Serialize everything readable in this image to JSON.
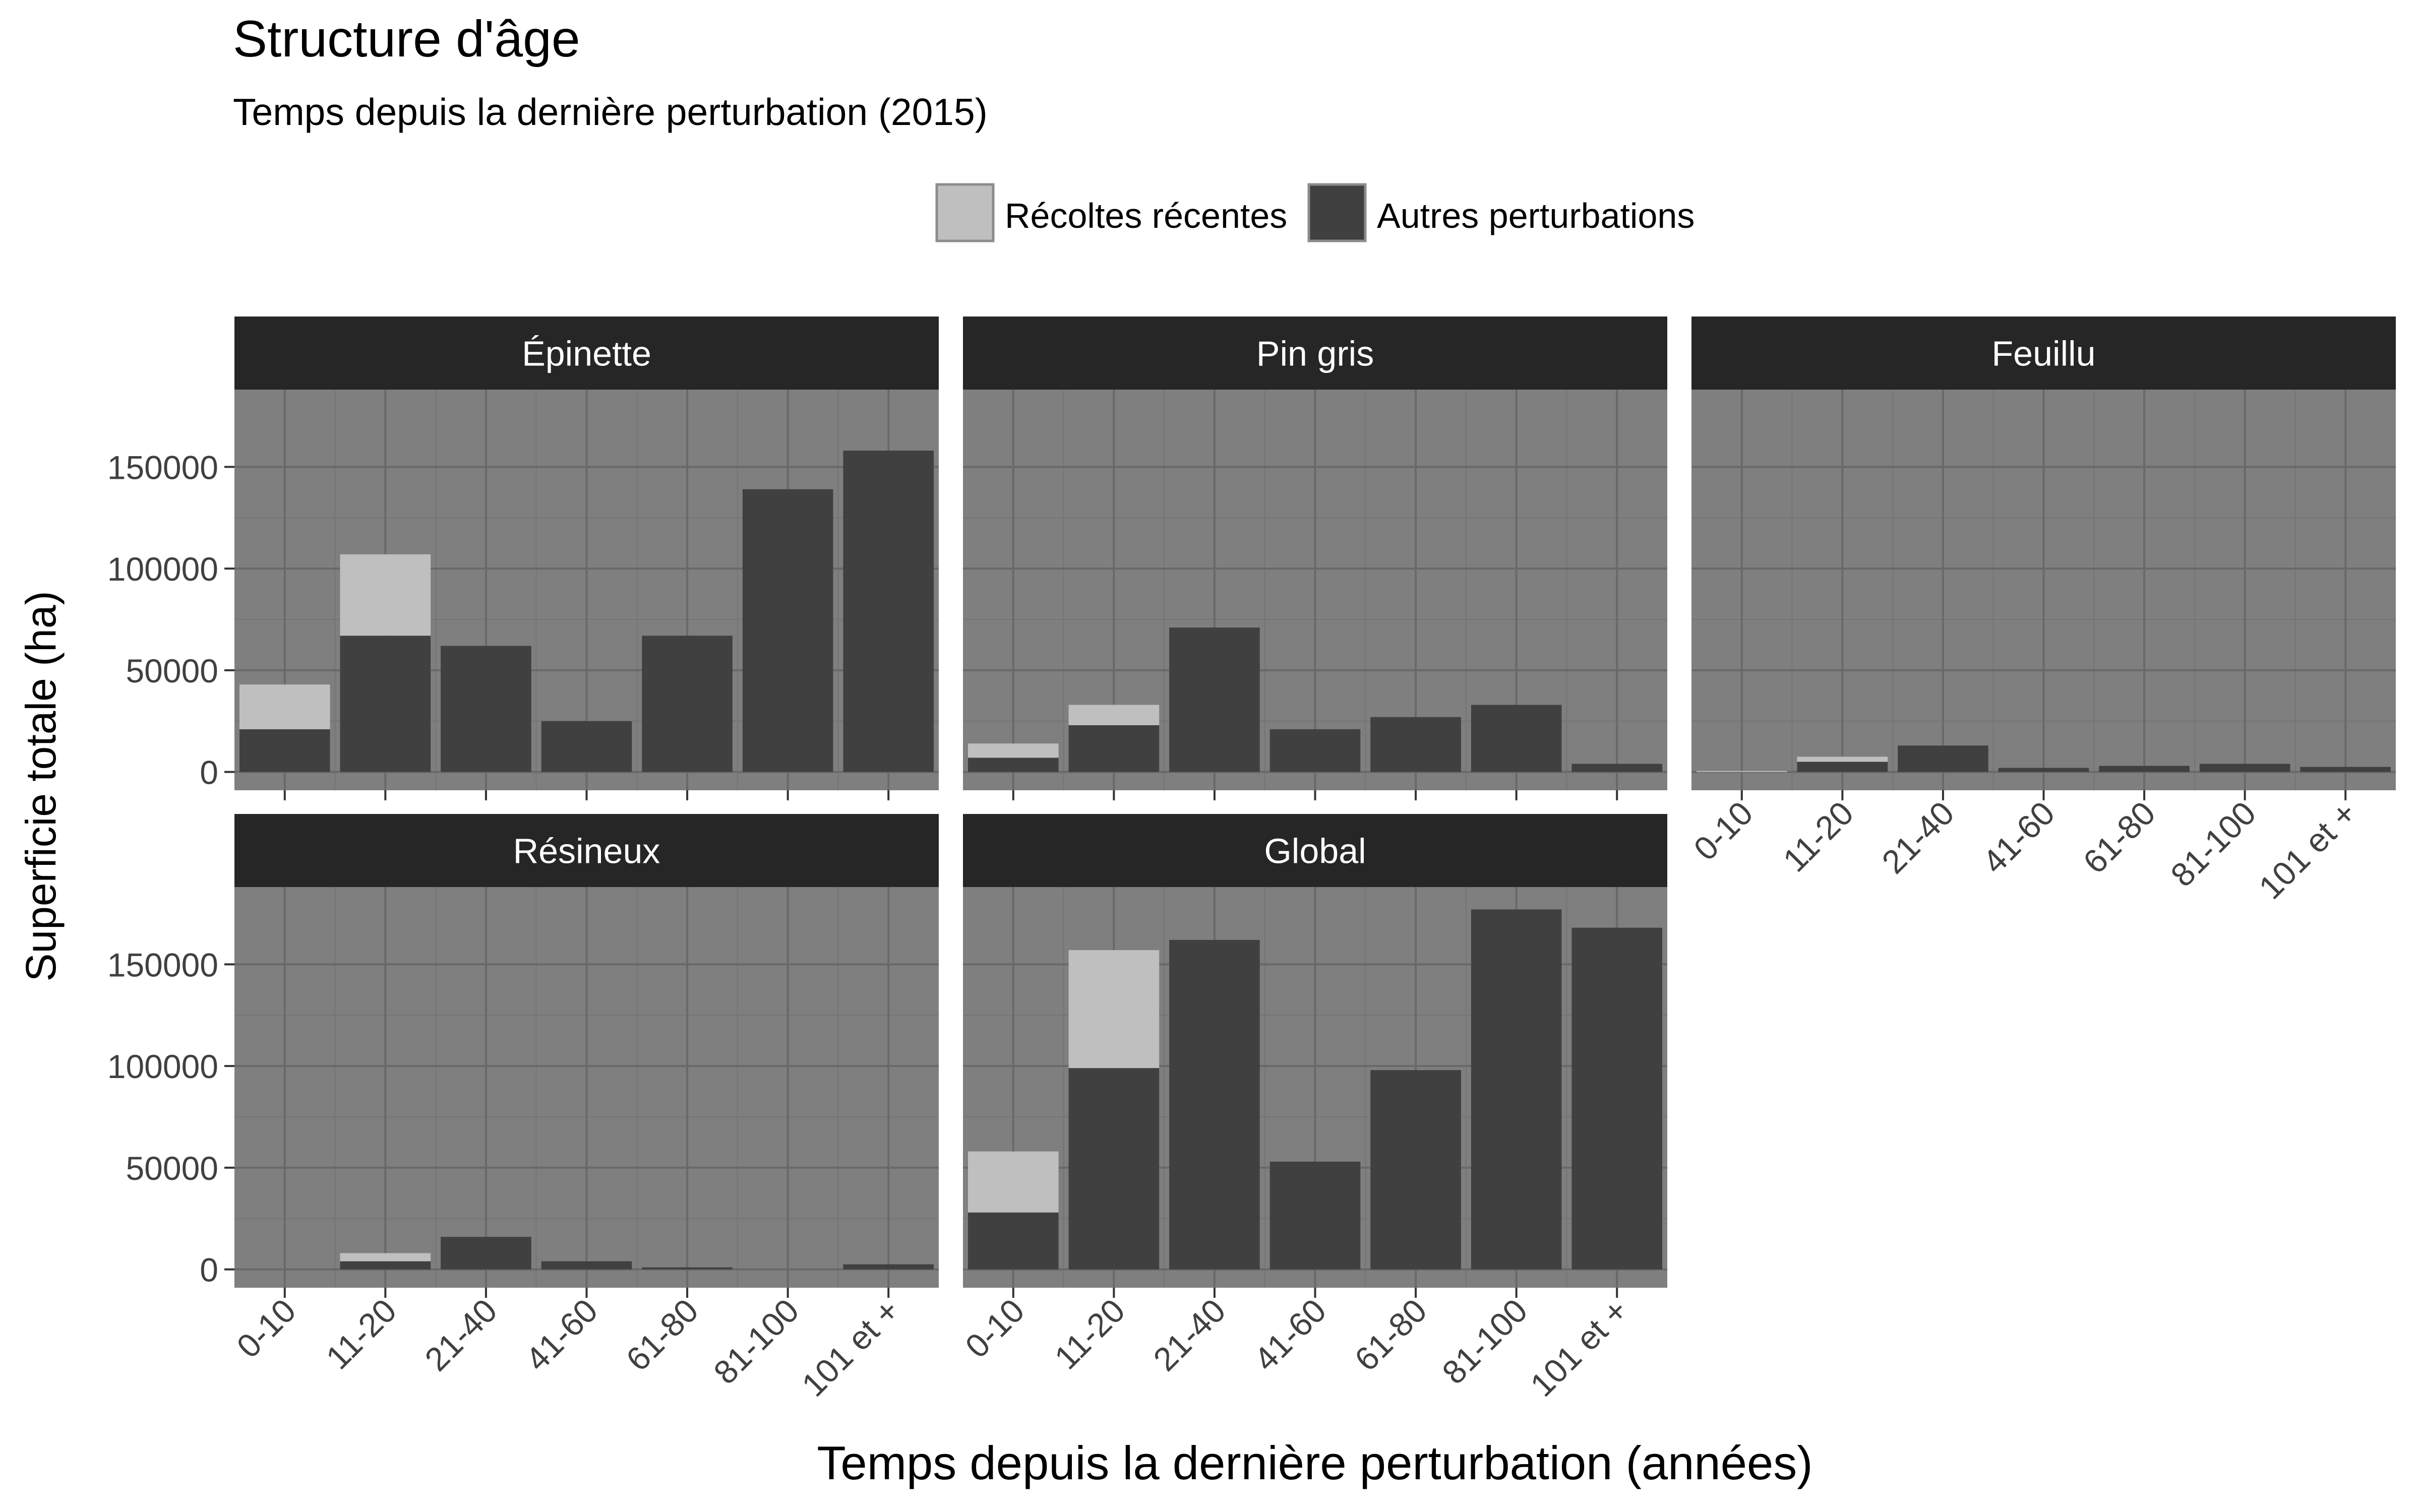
{
  "colors": {
    "panel_bg": "#7f7f7f",
    "grid_major": "#696969",
    "grid_minor": "#757575",
    "strip_bg": "#262626",
    "strip_text": "#ffffff",
    "recoltes": "#bfbfbf",
    "autres": "#404040",
    "axis_text": "#404040",
    "title_text": "#000000"
  },
  "chart_data": {
    "type": "bar",
    "stacked": true,
    "title": "Structure d'âge",
    "subtitle": "Temps depuis la dernière perturbation (2015)",
    "xlabel": "Temps depuis la dernière perturbation (années)",
    "ylabel": "Superficie totale (ha)",
    "ylim": [
      -9000,
      188000
    ],
    "yticks": [
      0,
      50000,
      100000,
      150000
    ],
    "ytick_labels": [
      "0",
      "50000",
      "100000",
      "150000"
    ],
    "grid": true,
    "legend_position": "top",
    "categories": [
      "0-10",
      "11-20",
      "21-40",
      "41-60",
      "61-80",
      "81-100",
      "101 et +"
    ],
    "legend": [
      {
        "name": "Récoltes récentes",
        "color_key": "recoltes"
      },
      {
        "name": "Autres perturbations",
        "color_key": "autres"
      }
    ],
    "panels": [
      {
        "name": "Épinette",
        "autres": [
          21000,
          67000,
          62000,
          25000,
          67000,
          139000,
          158000
        ],
        "recoltes": [
          22000,
          40000,
          0,
          0,
          0,
          0,
          0
        ]
      },
      {
        "name": "Pin gris",
        "autres": [
          7000,
          23000,
          71000,
          21000,
          27000,
          33000,
          4000
        ],
        "recoltes": [
          7000,
          10000,
          0,
          0,
          0,
          0,
          0
        ]
      },
      {
        "name": "Feuillu",
        "autres": [
          0,
          5000,
          13000,
          2000,
          3000,
          4000,
          2500
        ],
        "recoltes": [
          500,
          2500,
          0,
          0,
          0,
          0,
          0
        ]
      },
      {
        "name": "Résineux",
        "autres": [
          0,
          4000,
          16000,
          4000,
          1000,
          0,
          2500
        ],
        "recoltes": [
          0,
          4000,
          0,
          0,
          0,
          0,
          0
        ]
      },
      {
        "name": "Global",
        "autres": [
          28000,
          99000,
          162000,
          53000,
          98000,
          177000,
          168000
        ],
        "recoltes": [
          30000,
          58000,
          0,
          0,
          0,
          0,
          0
        ]
      }
    ]
  }
}
